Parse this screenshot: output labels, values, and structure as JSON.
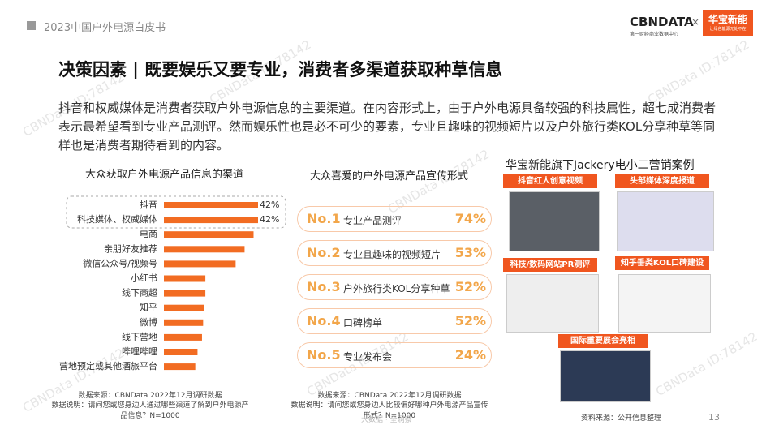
{
  "header": {
    "report": "2023中国户外电源白皮书",
    "logo": "CBNDATA",
    "logo_sub": "第一财经商业数据中心",
    "partner": "华宝新能",
    "partner_sub": "让绿色能源无处不在"
  },
  "title": "决策因素 | 既要娱乐又要专业，消费者多渠道获取种草信息",
  "intro": "抖音和权威媒体是消费者获取户外电源信息的主要渠道。在内容形式上，由于户外电源具备较强的科技属性，超七成消费者表示最希望看到专业产品测评。然而娱乐性也是必不可少的要素，专业且趣味的视频短片以及户外旅行类KOL分享种草等同样也是消费者期待看到的内容。",
  "chart_data": {
    "type": "bar",
    "orientation": "horizontal",
    "title": "大众获取户外电源产品信息的渠道",
    "categories": [
      "抖音",
      "科技媒体、权威媒体",
      "电商",
      "亲朋好友推荐",
      "微信公众号/视频号",
      "小红书",
      "线下商超",
      "知乎",
      "微博",
      "线下营地",
      "哔哩哔哩",
      "营地预定或其他酒旅平台"
    ],
    "values": [
      42,
      42,
      40,
      36,
      32,
      18.5,
      18.5,
      18,
      17.5,
      17,
      15,
      14
    ],
    "value_labels": [
      "42%",
      "42%",
      null,
      null,
      null,
      null,
      null,
      null,
      null,
      null,
      null,
      null
    ],
    "color": "#f26c22",
    "source": "数据来源：CBNData 2022年12月调研数据",
    "note": "数据说明：请问您或您身边人通过哪些渠道了解到户外电源产品信息？N=1000"
  },
  "promo": {
    "title": "大众喜爱的户外电源产品宣传形式",
    "items": [
      {
        "rank": "No.1",
        "label": "专业产品测评",
        "value": "74%"
      },
      {
        "rank": "No.2",
        "label": "专业且趣味的视频短片",
        "value": "53%"
      },
      {
        "rank": "No.3",
        "label": "户外旅行类KOL分享种草",
        "value": "52%"
      },
      {
        "rank": "No.4",
        "label": "口碑榜单",
        "value": "52%"
      },
      {
        "rank": "No.5",
        "label": "专业发布会",
        "value": "24%"
      }
    ],
    "source": "数据来源：CBNData 2022年12月调研数据",
    "note": "数据说明：请问您或您身边人比较偏好哪种户外电源产品宣传形式？N=1000"
  },
  "cases": {
    "title": "华宝新能旗下Jackery电小二营销案例",
    "tags": [
      "抖音红人创意视频",
      "头部媒体深度报道",
      "科技/数码网站PR测评",
      "知乎垂类KOL口碑建设",
      "国际重要展会亮相"
    ],
    "source": "资料来源：公开信息整理"
  },
  "footer": {
    "page": "13",
    "slogan": "大数据 · 全洞察"
  },
  "watermark": "CBNData ID:78142"
}
